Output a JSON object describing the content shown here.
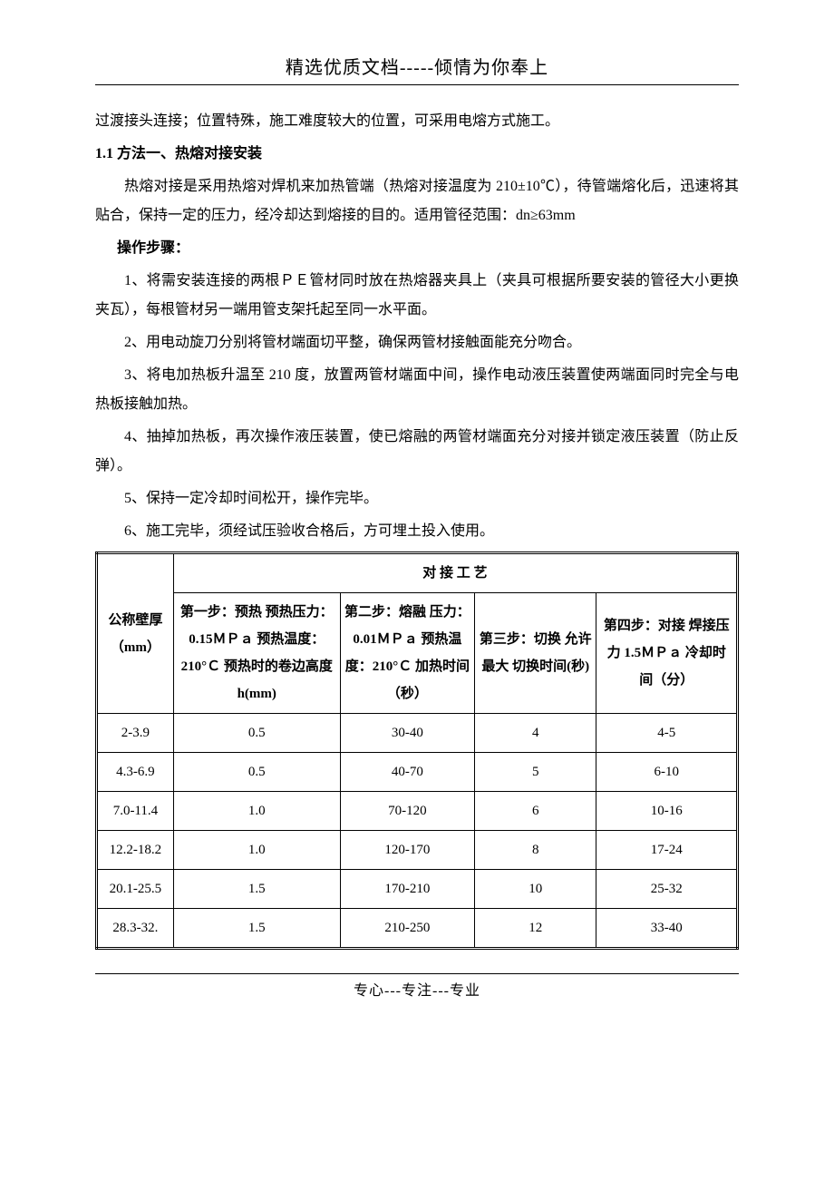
{
  "header": "精选优质文档-----倾情为你奉上",
  "footer": "专心---专注---专业",
  "page_bg": "#ffffff",
  "text_color": "#000000",
  "body": {
    "p0": "过渡接头连接；位置特殊，施工难度较大的位置，可采用电熔方式施工。",
    "h1": "1.1 方法一、热熔对接安装",
    "p1": "热熔对接是采用热熔对焊机来加热管端（热熔对接温度为 210±10℃），待管端熔化后，迅速将其贴合，保持一定的压力，经冷却达到熔接的目的。适用管径范围：dn≥63mm",
    "h2": "操作步骤：",
    "s1": "1、将需安装连接的两根ＰＥ管材同时放在热熔器夹具上（夹具可根据所要安装的管径大小更换夹瓦），每根管材另一端用管支架托起至同一水平面。",
    "s2": "2、用电动旋刀分别将管材端面切平整，确保两管材接触面能充分吻合。",
    "s3": "3、将电加热板升温至 210 度，放置两管材端面中间，操作电动液压装置使两端面同时完全与电热板接触加热。",
    "s4": "4、抽掉加热板，再次操作液压装置，使已熔融的两管材端面充分对接并锁定液压装置（防止反弹）。",
    "s5": "5、保持一定冷却时间松开，操作完毕。",
    "s6": "6、施工完毕，须经试压验收合格后，方可埋土投入使用。"
  },
  "table": {
    "row_header_label": "公称壁厚（mm）",
    "span_header": "对 接 工 艺",
    "col_headers": {
      "c1": "第一步：预热\n预热压力：0.15ＭＰａ\n预热温度：210°Ｃ\n预热时的卷边高度 h(mm)",
      "c2": "第二步：熔融\n压力：0.01ＭＰａ\n预热温度：210°Ｃ\n加热时间（秒）",
      "c3": "第三步：切换\n允许最大\n切换时间(秒)",
      "c4": "第四步：对接\n焊接压力 1.5ＭＰａ\n冷却时间（分）"
    },
    "rows": [
      {
        "thk": "2-3.9",
        "c1": "0.5",
        "c2": "30-40",
        "c3": "4",
        "c4": "4-5"
      },
      {
        "thk": "4.3-6.9",
        "c1": "0.5",
        "c2": "40-70",
        "c3": "5",
        "c4": "6-10"
      },
      {
        "thk": "7.0-11.4",
        "c1": "1.0",
        "c2": "70-120",
        "c3": "6",
        "c4": "10-16"
      },
      {
        "thk": "12.2-18.2",
        "c1": "1.0",
        "c2": "120-170",
        "c3": "8",
        "c4": "17-24"
      },
      {
        "thk": "20.1-25.5",
        "c1": "1.5",
        "c2": "170-210",
        "c3": "10",
        "c4": "25-32"
      },
      {
        "thk": "28.3-32.",
        "c1": "1.5",
        "c2": "210-250",
        "c3": "12",
        "c4": "33-40"
      }
    ],
    "border_color": "#000000",
    "font_size": 15
  }
}
